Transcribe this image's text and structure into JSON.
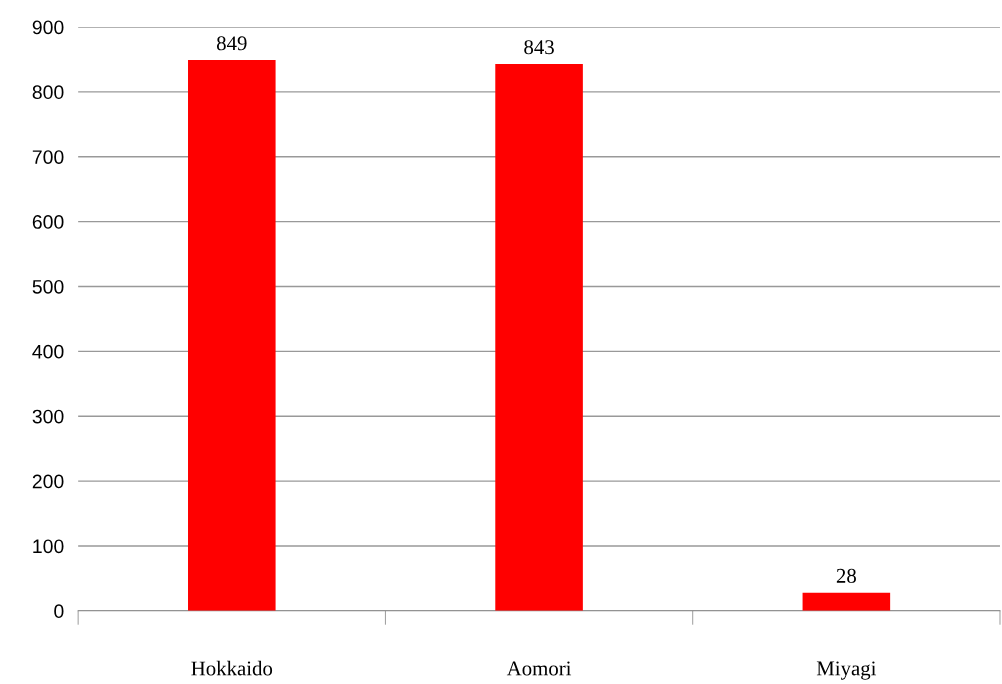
{
  "chart_data": {
    "type": "bar",
    "categories": [
      "Hokkaido",
      "Aomori",
      "Miyagi"
    ],
    "values": [
      849,
      843,
      28
    ],
    "color": "#ff0000",
    "ylim": [
      0,
      900
    ],
    "yticks": [
      0,
      100,
      200,
      300,
      400,
      500,
      600,
      700,
      800,
      900
    ],
    "grid": "y",
    "data_labels": true
  }
}
